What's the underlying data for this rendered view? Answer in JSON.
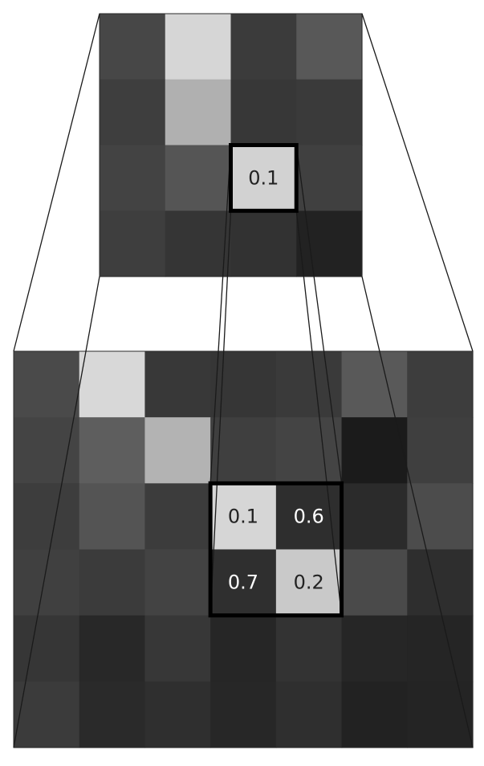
{
  "top_grid": {
    "rows": 4,
    "cols": 4,
    "colors": [
      [
        "#474747",
        "#d6d6d6",
        "#3b3b3b",
        "#585858"
      ],
      [
        "#3e3e3e",
        "#b0b0b0",
        "#373737",
        "#3a3a3a"
      ],
      [
        "#434343",
        "#555555",
        "#d2d2d2",
        "#404040"
      ],
      [
        "#3e3e3e",
        "#353535",
        "#323232",
        "#222222"
      ]
    ],
    "highlight": {
      "row": 2,
      "col": 2,
      "label": "0.1",
      "text_color": "#222222"
    }
  },
  "bottom_grid": {
    "rows": 6,
    "cols": 7,
    "colors": [
      [
        "#4a4a4a",
        "#d8d8d8",
        "#383838",
        "#363636",
        "#3a3a3a",
        "#595959",
        "#3d3d3d"
      ],
      [
        "#444444",
        "#5e5e5e",
        "#b3b3b3",
        "#3f3f3f",
        "#444444",
        "#1b1b1b",
        "#3f3f3f"
      ],
      [
        "#3d3d3d",
        "#545454",
        "#3c3c3c",
        "#d6d6d6",
        "#2e2e2e",
        "#2b2b2b",
        "#4c4c4c"
      ],
      [
        "#404040",
        "#3b3b3b",
        "#434343",
        "#2f2f2f",
        "#c9c9c9",
        "#4a4a4a",
        "#2e2e2e"
      ],
      [
        "#363636",
        "#282828",
        "#373737",
        "#262626",
        "#333333",
        "#262626",
        "#252525"
      ],
      [
        "#3b3b3b",
        "#2a2a2a",
        "#2f2f2f",
        "#272727",
        "#2f2f2f",
        "#222222",
        "#242424"
      ]
    ],
    "highlight_block": {
      "row": 2,
      "col": 3,
      "labels": [
        {
          "row": 0,
          "col": 0,
          "text": "0.1",
          "text_color": "#222222"
        },
        {
          "row": 0,
          "col": 1,
          "text": "0.6",
          "text_color": "#ffffff"
        },
        {
          "row": 1,
          "col": 0,
          "text": "0.7",
          "text_color": "#ffffff"
        },
        {
          "row": 1,
          "col": 1,
          "text": "0.2",
          "text_color": "#222222"
        }
      ]
    }
  }
}
